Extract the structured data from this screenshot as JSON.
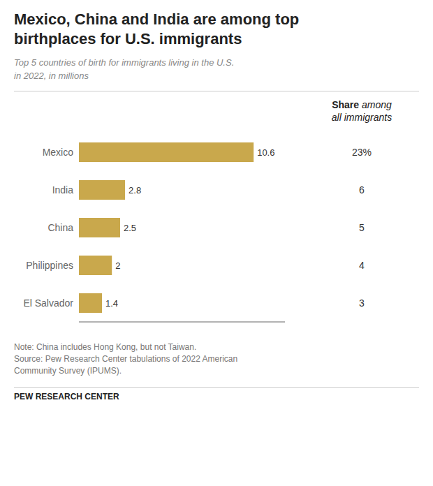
{
  "chart_data": {
    "type": "bar",
    "orientation": "horizontal",
    "title": "Mexico, China and India are among top\nbirthplaces for U.S. immigrants",
    "subtitle": "Top 5 countries of birth for immigrants living in the U.S.\nin 2022, in millions",
    "categories": [
      "Mexico",
      "India",
      "China",
      "Philippines",
      "El Salvador"
    ],
    "values": [
      10.6,
      2.8,
      2.5,
      2.0,
      1.4
    ],
    "color": "#C9A84C",
    "xlim": [
      0,
      12.5
    ],
    "tick_labels": "y",
    "grid": false,
    "data_labels": true,
    "share_column": {
      "title": "Share among\nall immigrants",
      "values": [
        23,
        6,
        5,
        4,
        3
      ],
      "value_labels": [
        "23%",
        "6",
        "5",
        "4",
        "3"
      ]
    },
    "annotations": [
      "Note: China includes Hong Kong, but not Taiwan.",
      "Source: Pew Research Center tabulations of 2022 American",
      "Community Survey (IPUMS)."
    ],
    "footer": "PEW RESEARCH CENTER"
  }
}
